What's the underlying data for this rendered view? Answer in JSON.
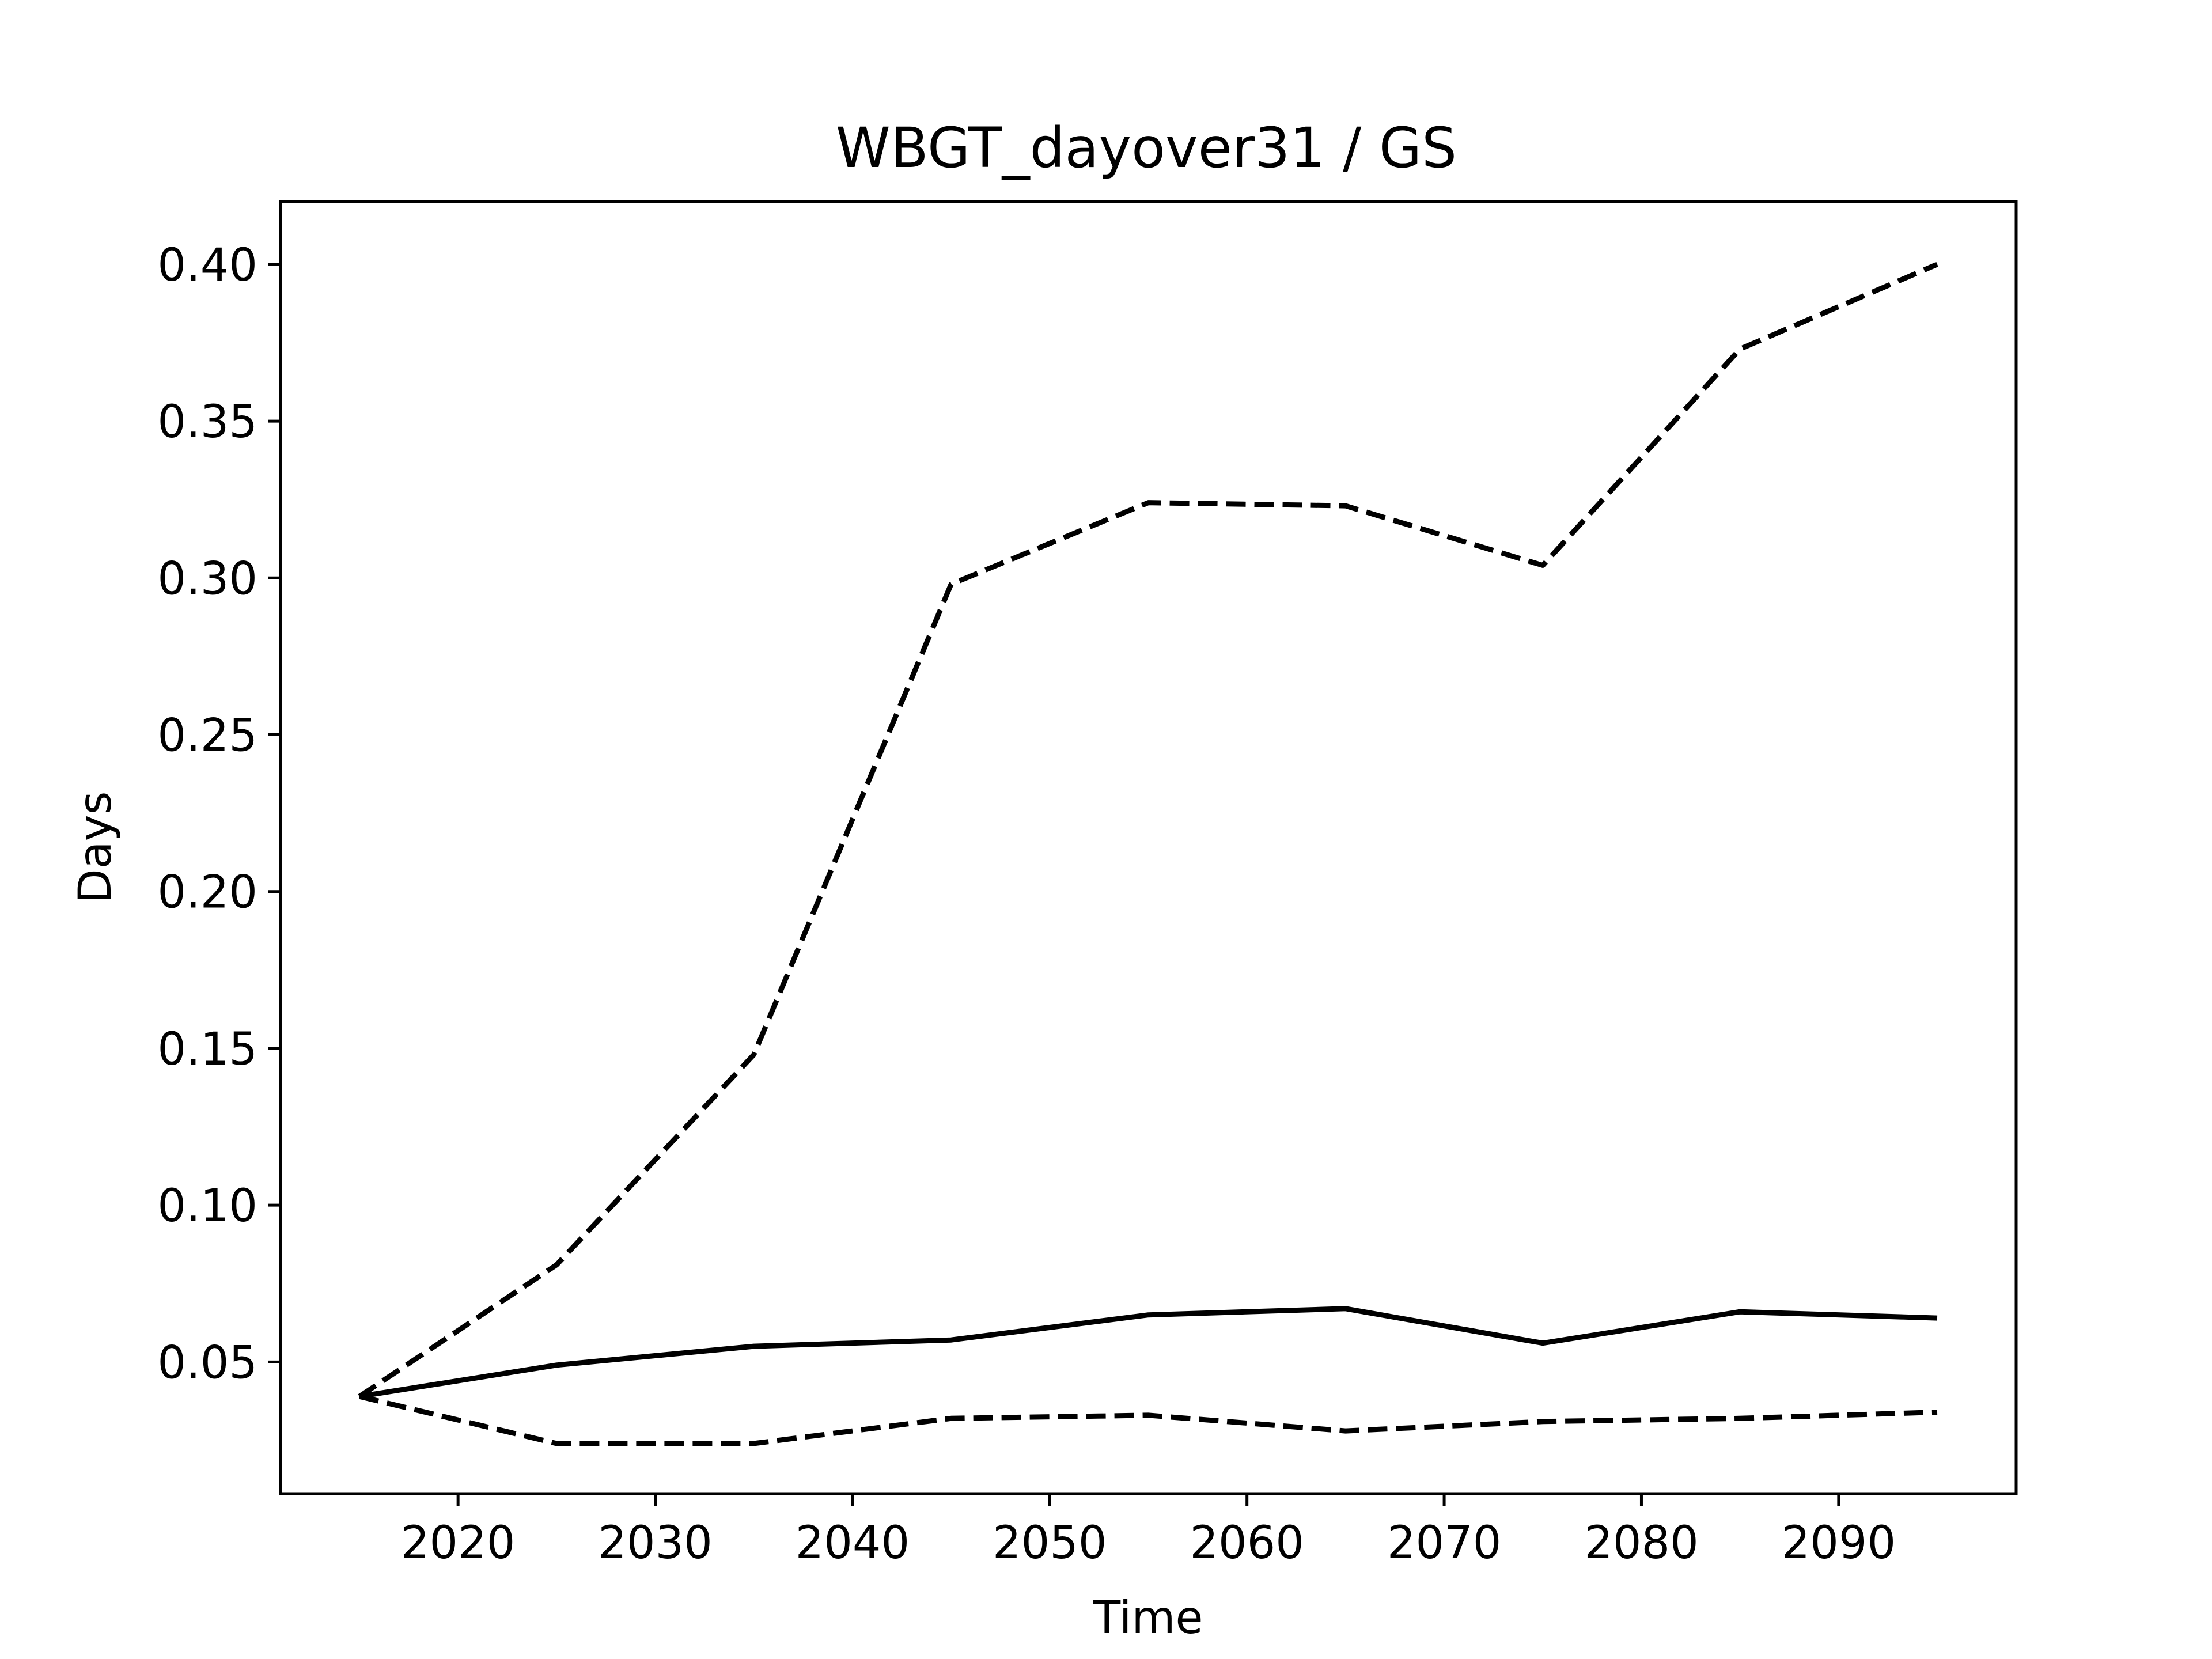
{
  "chart_data": {
    "type": "line",
    "title": "WBGT_dayover31 / GS",
    "xlabel": "Time",
    "ylabel": "Days",
    "xlim": [
      2011,
      2099
    ],
    "ylim": [
      0.008,
      0.42
    ],
    "xticks": [
      2020,
      2030,
      2040,
      2050,
      2060,
      2070,
      2080,
      2090
    ],
    "yticks": [
      0.05,
      0.1,
      0.15,
      0.2,
      0.25,
      0.3,
      0.35,
      0.4
    ],
    "ytick_labels": [
      "0.05",
      "0.10",
      "0.15",
      "0.20",
      "0.25",
      "0.30",
      "0.35",
      "0.40"
    ],
    "grid": false,
    "x": [
      2015,
      2025,
      2035,
      2045,
      2055,
      2065,
      2075,
      2085,
      2095
    ],
    "series": [
      {
        "style": "solid",
        "color": "#000000",
        "values": [
          0.039,
          0.049,
          0.055,
          0.057,
          0.065,
          0.067,
          0.056,
          0.066,
          0.064
        ]
      },
      {
        "style": "dashed",
        "color": "#000000",
        "values": [
          0.039,
          0.081,
          0.148,
          0.298,
          0.324,
          0.323,
          0.304,
          0.373,
          0.4
        ]
      },
      {
        "style": "dashed",
        "color": "#000000",
        "values": [
          0.039,
          0.024,
          0.024,
          0.032,
          0.033,
          0.028,
          0.031,
          0.032,
          0.034
        ]
      }
    ]
  }
}
